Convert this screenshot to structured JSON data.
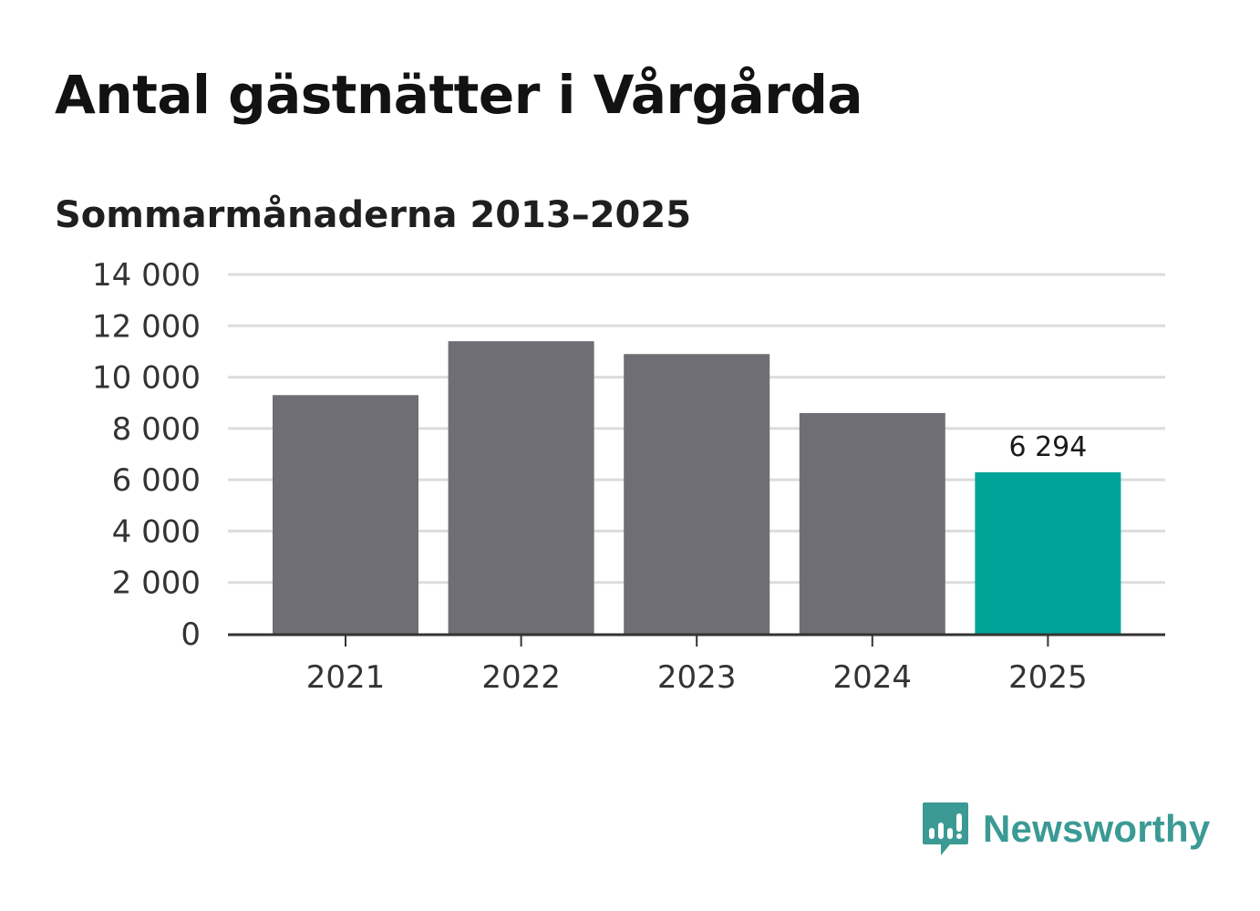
{
  "title": "Antal gästnätter i Vårgårda",
  "subtitle": "Sommarmånaderna 2013–2025",
  "brand": {
    "name": "Newsworthy",
    "icon": "bar-chart-speech-bubble-icon",
    "color": "#3b9a94"
  },
  "colors": {
    "bar_default": "#6f6e74",
    "bar_highlight": "#00a398",
    "grid": "#dcdcdc",
    "axis": "#333333",
    "tick_text": "#333333"
  },
  "chart_data": {
    "type": "bar",
    "categories": [
      "2021",
      "2022",
      "2023",
      "2024",
      "2025"
    ],
    "values": [
      9300,
      11400,
      10900,
      8600,
      6294
    ],
    "highlight_index": 4,
    "data_labels": [
      {
        "index": 4,
        "text": "6 294"
      }
    ],
    "ylim": [
      0,
      14000
    ],
    "yticks": [
      0,
      2000,
      4000,
      6000,
      8000,
      10000,
      12000,
      14000
    ],
    "ytick_labels": [
      "0",
      "2 000",
      "4 000",
      "6 000",
      "8 000",
      "10 000",
      "12 000",
      "14 000"
    ],
    "grid": true,
    "legend": "none",
    "xlabel": "",
    "ylabel": ""
  }
}
